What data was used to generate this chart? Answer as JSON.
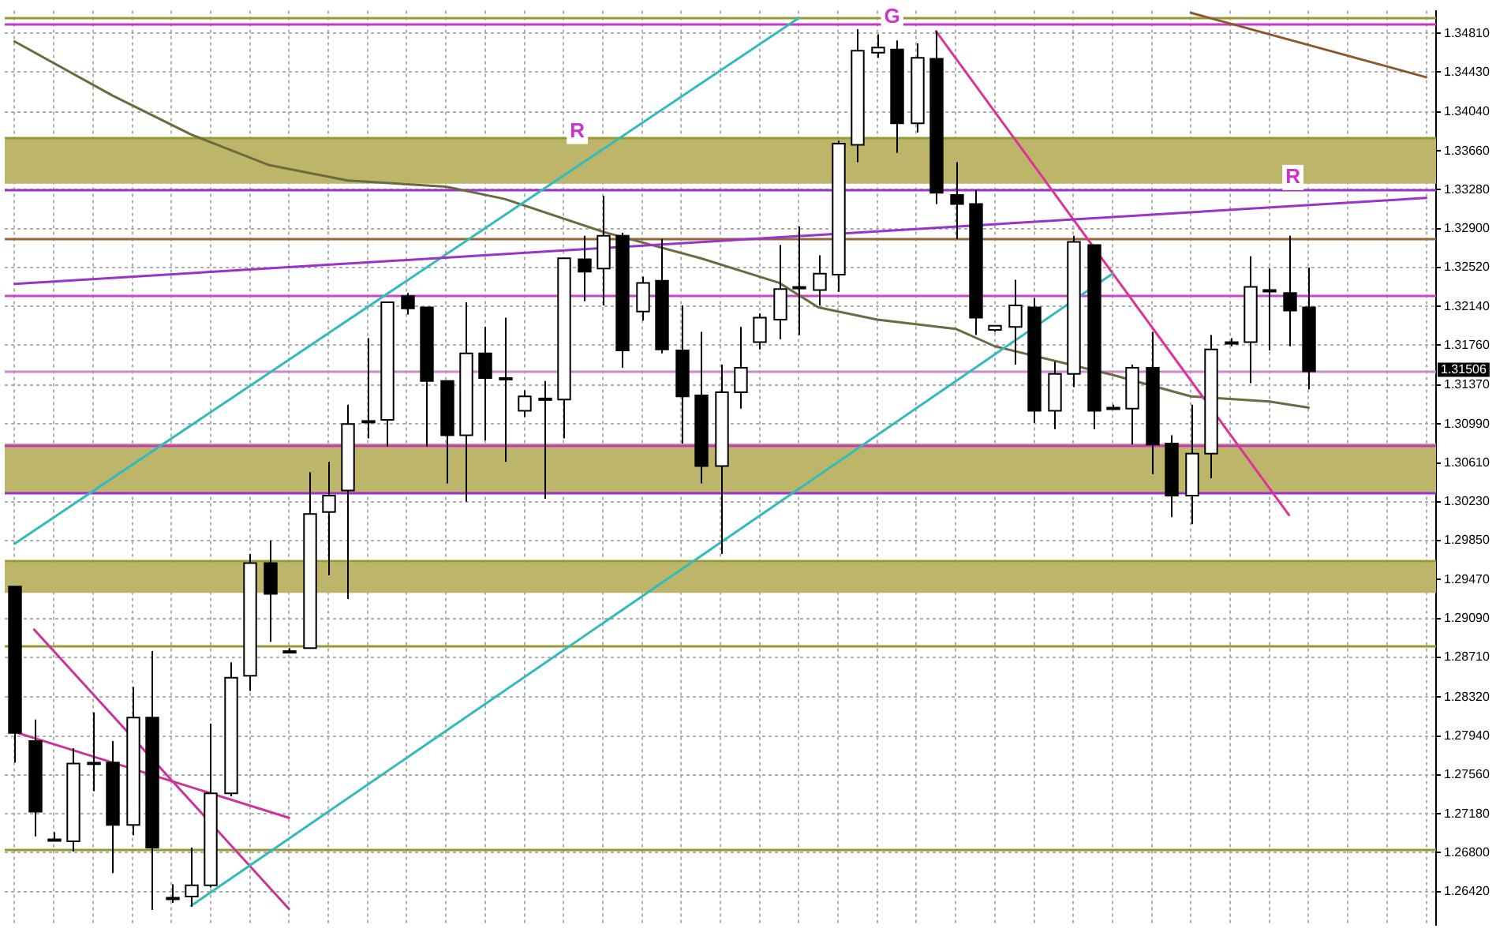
{
  "chart_data": {
    "type": "candlestick",
    "categories": [
      null,
      null,
      null,
      null,
      null,
      null,
      null,
      null,
      null,
      null,
      null,
      null,
      null,
      null,
      null,
      null,
      null,
      null,
      null,
      null,
      null,
      null,
      null,
      null,
      null,
      null,
      null,
      null,
      null,
      null,
      null,
      null,
      null,
      null,
      null,
      null,
      null,
      null,
      null,
      null,
      null,
      null,
      null,
      null,
      null,
      null,
      null,
      null,
      null,
      null,
      null,
      null,
      null,
      null,
      null,
      null,
      null,
      null,
      null,
      null,
      null,
      null,
      null,
      null,
      null,
      null,
      null,
      null,
      null,
      null,
      null,
      null,
      null
    ],
    "ohlc": [
      [
        1.294,
        1.294,
        1.2768,
        1.2797
      ],
      [
        1.2789,
        1.281,
        1.2696,
        1.272
      ],
      [
        1.2693,
        1.27,
        1.2691,
        1.2693
      ],
      [
        1.2691,
        1.2782,
        1.2681,
        1.2767
      ],
      [
        1.2768,
        1.2817,
        1.274,
        1.2768
      ],
      [
        1.2768,
        1.2789,
        1.266,
        1.2707
      ],
      [
        1.2707,
        1.2842,
        1.2697,
        1.2812
      ],
      [
        1.2812,
        1.2877,
        1.2624,
        1.2685
      ],
      [
        1.2636,
        1.2649,
        1.2631,
        1.2636
      ],
      [
        1.2637,
        1.2685,
        1.2627,
        1.2648
      ],
      [
        1.2648,
        1.2806,
        1.2646,
        1.2738
      ],
      [
        1.2738,
        1.2866,
        1.2735,
        1.2851
      ],
      [
        1.2853,
        1.2972,
        1.2838,
        1.2963
      ],
      [
        1.2963,
        1.2985,
        1.2886,
        1.2933
      ],
      [
        1.2877,
        1.288,
        1.2876,
        1.2877
      ],
      [
        1.288,
        1.3052,
        1.288,
        1.3011
      ],
      [
        1.3013,
        1.3062,
        1.2951,
        1.3029
      ],
      [
        1.3034,
        1.3118,
        1.2928,
        1.3099
      ],
      [
        1.3102,
        1.3183,
        1.3085,
        1.3102
      ],
      [
        1.3103,
        1.3218,
        1.3077,
        1.3218
      ],
      [
        1.3224,
        1.3227,
        1.3206,
        1.3212
      ],
      [
        1.3213,
        1.3213,
        1.3077,
        1.3141
      ],
      [
        1.3141,
        1.3141,
        1.3041,
        1.3088
      ],
      [
        1.3088,
        1.3218,
        1.3023,
        1.3168
      ],
      [
        1.3168,
        1.3194,
        1.3083,
        1.3144
      ],
      [
        1.3144,
        1.3203,
        1.3062,
        1.3144
      ],
      [
        1.3112,
        1.3132,
        1.3106,
        1.3126
      ],
      [
        1.3124,
        1.3141,
        1.3026,
        1.3124
      ],
      [
        1.3123,
        1.3261,
        1.3085,
        1.3261
      ],
      [
        1.326,
        1.3283,
        1.3219,
        1.3248
      ],
      [
        1.3251,
        1.3322,
        1.3215,
        1.3283
      ],
      [
        1.3283,
        1.3286,
        1.3154,
        1.3171
      ],
      [
        1.3209,
        1.3243,
        1.32,
        1.3237
      ],
      [
        1.3239,
        1.328,
        1.3168,
        1.3172
      ],
      [
        1.3171,
        1.3215,
        1.308,
        1.3126
      ],
      [
        1.3127,
        1.3189,
        1.3041,
        1.3058
      ],
      [
        1.3058,
        1.3157,
        1.2972,
        1.313
      ],
      [
        1.313,
        1.3194,
        1.3114,
        1.3154
      ],
      [
        1.3179,
        1.3207,
        1.3172,
        1.3203
      ],
      [
        1.3201,
        1.3274,
        1.3182,
        1.3231
      ],
      [
        1.3233,
        1.3292,
        1.3186,
        1.3233
      ],
      [
        1.323,
        1.3264,
        1.3215,
        1.3246
      ],
      [
        1.3245,
        1.3376,
        1.3228,
        1.3373
      ],
      [
        1.3372,
        1.3485,
        1.3355,
        1.3464
      ],
      [
        1.3462,
        1.348,
        1.3457,
        1.3467
      ],
      [
        1.3465,
        1.3474,
        1.3364,
        1.3393
      ],
      [
        1.3393,
        1.3471,
        1.3384,
        1.3457
      ],
      [
        1.3456,
        1.3483,
        1.3314,
        1.3325
      ],
      [
        1.3323,
        1.3355,
        1.328,
        1.3314
      ],
      [
        1.3314,
        1.3328,
        1.3186,
        1.3203
      ],
      [
        1.3191,
        1.3195,
        1.3189,
        1.3195
      ],
      [
        1.3194,
        1.324,
        1.3157,
        1.3215
      ],
      [
        1.3213,
        1.3222,
        1.31,
        1.3112
      ],
      [
        1.3112,
        1.316,
        1.3094,
        1.3148
      ],
      [
        1.3148,
        1.3283,
        1.3135,
        1.3277
      ],
      [
        1.3274,
        1.3274,
        1.3094,
        1.3112
      ],
      [
        1.3115,
        1.3118,
        1.3114,
        1.3115
      ],
      [
        1.3114,
        1.3157,
        1.3079,
        1.3154
      ],
      [
        1.3154,
        1.3189,
        1.305,
        1.3079
      ],
      [
        1.308,
        1.3088,
        1.3008,
        1.3029
      ],
      [
        1.3029,
        1.3118,
        1.3001,
        1.307
      ],
      [
        1.307,
        1.3186,
        1.3046,
        1.3172
      ],
      [
        1.3179,
        1.3183,
        1.3175,
        1.3179
      ],
      [
        1.3179,
        1.3263,
        1.3139,
        1.3233
      ],
      [
        1.323,
        1.3251,
        1.3171,
        1.323
      ],
      [
        1.3227,
        1.3283,
        1.3175,
        1.321
      ],
      [
        1.3213,
        1.3252,
        1.3133,
        1.31506
      ],
      null,
      null,
      null,
      null,
      null,
      null
    ],
    "ylim": [
      1.2609,
      1.3503
    ],
    "yticks": [
      {
        "value": 1.3481,
        "label": "1.34810"
      },
      {
        "value": 1.3443,
        "label": "1.34430"
      },
      {
        "value": 1.3404,
        "label": "1.34040"
      },
      {
        "value": 1.3366,
        "label": "1.33660"
      },
      {
        "value": 1.3328,
        "label": "1.33280"
      },
      {
        "value": 1.329,
        "label": "1.32900"
      },
      {
        "value": 1.3252,
        "label": "1.32520"
      },
      {
        "value": 1.3214,
        "label": "1.32140"
      },
      {
        "value": 1.3176,
        "label": "1.31760"
      },
      {
        "value": 1.3137,
        "label": "1.31370"
      },
      {
        "value": 1.3099,
        "label": "1.30990"
      },
      {
        "value": 1.3061,
        "label": "1.30610"
      },
      {
        "value": 1.3023,
        "label": "1.30230"
      },
      {
        "value": 1.2985,
        "label": "1.29850"
      },
      {
        "value": 1.2947,
        "label": "1.29470"
      },
      {
        "value": 1.2909,
        "label": "1.29090"
      },
      {
        "value": 1.2871,
        "label": "1.28710"
      },
      {
        "value": 1.2832,
        "label": "1.28320"
      },
      {
        "value": 1.2794,
        "label": "1.27940"
      },
      {
        "value": 1.2756,
        "label": "1.27560"
      },
      {
        "value": 1.2718,
        "label": "1.27180"
      },
      {
        "value": 1.268,
        "label": "1.26800"
      },
      {
        "value": 1.2642,
        "label": "1.26420"
      }
    ],
    "grid": true,
    "tick_labels": "y",
    "series": [
      {
        "type": "line",
        "color": "#9933cc",
        "values": [
          1.3236,
          null,
          null,
          null,
          null,
          null,
          null,
          null,
          null,
          null,
          null,
          null,
          null,
          null,
          null,
          null,
          null,
          null,
          null,
          null,
          null,
          null,
          null,
          null,
          null,
          null,
          null,
          null,
          null,
          null,
          null,
          null,
          null,
          null,
          null,
          null,
          null,
          null,
          null,
          null,
          null,
          null,
          null,
          null,
          null,
          null,
          null,
          null,
          null,
          null,
          null,
          null,
          null,
          null,
          null,
          null,
          null,
          null,
          null,
          null,
          null,
          null,
          null,
          null,
          null,
          null,
          null,
          null,
          null,
          null,
          null,
          null,
          1.332
        ]
      },
      {
        "type": "line",
        "color": "#33bbbb",
        "values": [
          1.2982,
          null,
          null,
          null,
          null,
          null,
          null,
          null,
          null,
          null,
          null,
          null,
          null,
          null,
          null,
          null,
          null,
          null,
          null,
          null,
          null,
          null,
          null,
          null,
          null,
          null,
          null,
          null,
          null,
          null,
          null,
          null,
          null,
          null,
          null,
          null,
          null,
          null,
          null,
          null,
          1.3496,
          null,
          null,
          null,
          null,
          null,
          null,
          null,
          null,
          null,
          null,
          null,
          null,
          null,
          null,
          null,
          null,
          null,
          null,
          null,
          null,
          null,
          null,
          null,
          null,
          null,
          null,
          null,
          null,
          null,
          null,
          null,
          null
        ]
      },
      {
        "type": "line",
        "color": "#33bbbb",
        "values": [
          null,
          null,
          null,
          null,
          null,
          null,
          null,
          null,
          null,
          1.2628,
          null,
          null,
          null,
          null,
          null,
          null,
          null,
          null,
          null,
          null,
          null,
          null,
          null,
          null,
          null,
          null,
          null,
          null,
          null,
          null,
          null,
          null,
          null,
          null,
          null,
          null,
          null,
          null,
          null,
          null,
          null,
          null,
          null,
          null,
          null,
          null,
          null,
          null,
          null,
          null,
          null,
          null,
          null,
          null,
          null,
          null,
          1.3246,
          null,
          null,
          null,
          null,
          null,
          null,
          null,
          null,
          null,
          null,
          null,
          null,
          null,
          null,
          null,
          null
        ]
      },
      {
        "type": "line",
        "color": "#dd3399",
        "values": [
          null,
          null,
          null,
          null,
          null,
          null,
          null,
          null,
          null,
          null,
          null,
          null,
          null,
          null,
          null,
          null,
          null,
          null,
          null,
          null,
          null,
          null,
          null,
          null,
          null,
          null,
          null,
          null,
          null,
          null,
          null,
          null,
          null,
          null,
          null,
          null,
          null,
          null,
          null,
          null,
          null,
          null,
          null,
          null,
          null,
          null,
          null,
          1.3483,
          null,
          null,
          null,
          null,
          null,
          null,
          null,
          null,
          null,
          null,
          null,
          null,
          null,
          null,
          null,
          null,
          null,
          1.301,
          null,
          null,
          null,
          null,
          null,
          null,
          null
        ]
      },
      {
        "type": "line",
        "color": "#cc3399",
        "values": [
          1.2798,
          null,
          null,
          null,
          null,
          null,
          null,
          null,
          null,
          null,
          null,
          null,
          null,
          null,
          1.2714,
          null,
          null,
          null,
          null,
          null,
          null,
          null,
          null,
          null,
          null,
          null,
          null,
          null,
          null,
          null,
          null,
          null,
          null,
          null,
          null,
          null,
          null,
          null,
          null,
          null,
          null,
          null,
          null,
          null,
          null,
          null,
          null,
          null,
          null,
          null,
          null,
          null,
          null,
          null,
          null,
          null,
          null,
          null,
          null,
          null,
          null,
          null,
          null,
          null,
          null,
          null,
          null,
          null,
          null,
          null,
          null,
          null,
          null
        ]
      },
      {
        "type": "line",
        "color": "#cc3399",
        "values": [
          null,
          1.2898,
          null,
          null,
          null,
          null,
          null,
          null,
          null,
          null,
          null,
          null,
          null,
          null,
          1.2625,
          null,
          null,
          null,
          null,
          null,
          null,
          null,
          null,
          null,
          null,
          null,
          null,
          null,
          null,
          null,
          null,
          null,
          null,
          null,
          null,
          null,
          null,
          null,
          null,
          null,
          null,
          null,
          null,
          null,
          null,
          null,
          null,
          null,
          null,
          null,
          null,
          null,
          null,
          null,
          null,
          null,
          null,
          null,
          null,
          null,
          null,
          null,
          null,
          null,
          null,
          null,
          null,
          null,
          null,
          null,
          null,
          null,
          null
        ]
      },
      {
        "type": "line",
        "color": "#8b5a2b",
        "values": [
          null,
          null,
          null,
          null,
          null,
          null,
          null,
          null,
          null,
          null,
          null,
          null,
          null,
          null,
          null,
          null,
          null,
          null,
          null,
          null,
          null,
          null,
          null,
          null,
          null,
          null,
          null,
          null,
          null,
          null,
          null,
          null,
          null,
          null,
          null,
          null,
          null,
          null,
          null,
          null,
          null,
          null,
          null,
          null,
          null,
          null,
          null,
          null,
          null,
          null,
          null,
          null,
          null,
          null,
          null,
          null,
          null,
          null,
          null,
          null,
          1.3501,
          null,
          null,
          null,
          null,
          null,
          null,
          null,
          null,
          null,
          null,
          null,
          1.3438
        ]
      },
      {
        "type": "line",
        "color": "#6b6b40",
        "values": [
          1.3473,
          null,
          null,
          null,
          null,
          1.342,
          null,
          null,
          null,
          1.3382,
          null,
          null,
          null,
          1.3352,
          null,
          null,
          null,
          1.3337,
          null,
          null,
          null,
          null,
          1.3331,
          null,
          null,
          1.3319,
          null,
          null,
          null,
          null,
          1.3287,
          null,
          null,
          null,
          null,
          1.3261,
          null,
          null,
          null,
          1.3237,
          null,
          1.3213,
          null,
          null,
          1.3201,
          null,
          null,
          null,
          1.3192,
          null,
          1.3175,
          null,
          null,
          null,
          null,
          null,
          1.3147,
          null,
          null,
          null,
          1.3126,
          null,
          null,
          null,
          1.3121,
          null,
          1.3115,
          null,
          null,
          null,
          null,
          null,
          null
        ]
      }
    ],
    "bands": [
      {
        "axis": "y",
        "from": 1.3334,
        "to": 1.3379,
        "color": "#bdb56a"
      },
      {
        "axis": "y",
        "from": 1.3032,
        "to": 1.308,
        "color": "#bdb56a"
      },
      {
        "axis": "y",
        "from": 1.2934,
        "to": 1.2964,
        "color": "#bdb56a"
      }
    ],
    "ref_lines": [
      {
        "axis": "y",
        "value": 1.3497,
        "color": "#999933"
      },
      {
        "axis": "y",
        "value": 1.3491,
        "color": "#cc33cc"
      },
      {
        "axis": "y",
        "value": 1.3379,
        "color": "#999933"
      },
      {
        "axis": "y",
        "value": 1.3328,
        "color": "#9933cc"
      },
      {
        "axis": "y",
        "value": 1.3281,
        "color": "#996633"
      },
      {
        "axis": "y",
        "value": 1.3225,
        "color": "#cc44cc"
      },
      {
        "axis": "y",
        "value": 1.31506,
        "label": "1.31506",
        "color": "#cc88cc"
      },
      {
        "axis": "y",
        "value": 1.3079,
        "color": "#cc33cc"
      },
      {
        "axis": "y",
        "value": 1.3032,
        "color": "#9933cc"
      },
      {
        "axis": "y",
        "value": 1.2966,
        "color": "#999933"
      },
      {
        "axis": "y",
        "value": 1.2883,
        "color": "#999933"
      },
      {
        "axis": "y",
        "value": 1.2684,
        "color": "#999933"
      }
    ],
    "annotations": [
      {
        "text": "R",
        "y": 1.3385
      },
      {
        "text": "G",
        "y": 1.3497
      },
      {
        "text": "R",
        "y": 1.334
      }
    ]
  }
}
